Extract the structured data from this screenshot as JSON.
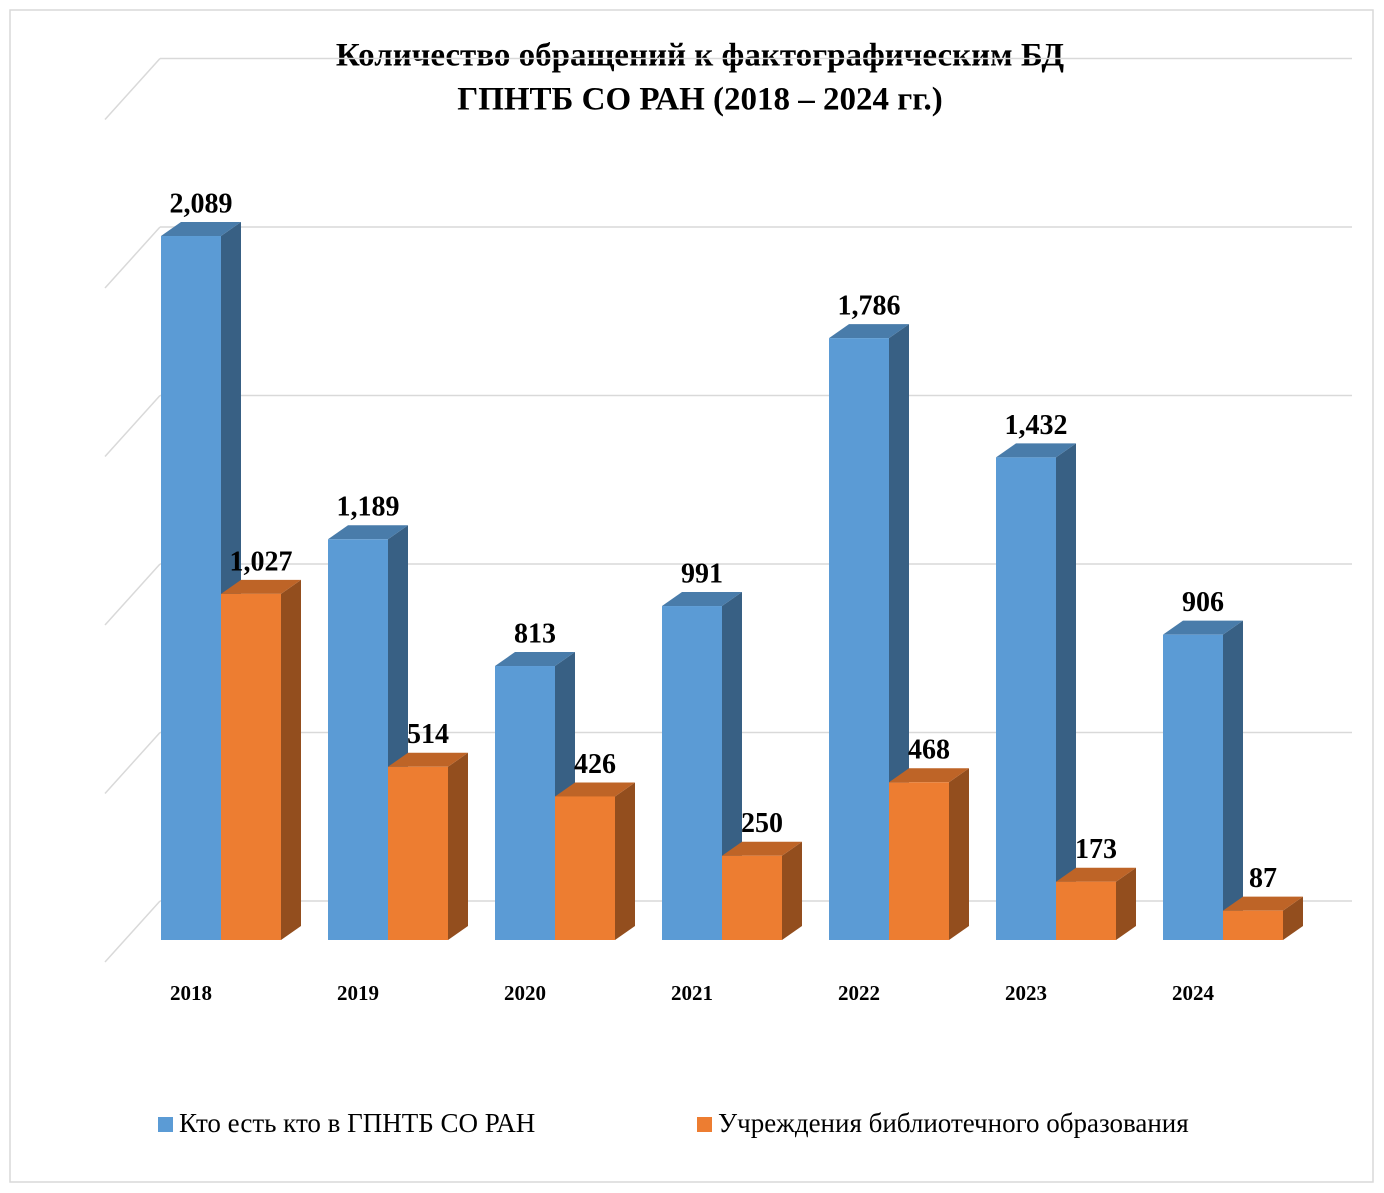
{
  "chart_data": {
    "type": "bar3d",
    "title": [
      "Количество обращений к фактографическим БД",
      "ГПНТБ СО РАН (2018 – 2024 гг.)"
    ],
    "categories": [
      "2018",
      "2019",
      "2020",
      "2021",
      "2022",
      "2023",
      "2024"
    ],
    "series": [
      {
        "name": "Кто есть кто в ГПНТБ СО РАН",
        "color": "#5b9bd5",
        "values": [
          2089,
          1189,
          813,
          991,
          1786,
          1432,
          906
        ],
        "value_labels": [
          "2,089",
          "1,189",
          "813",
          "991",
          "1,786",
          "1,432",
          "906"
        ]
      },
      {
        "name": "Учреждения библиотечного образования",
        "color": "#ed7d31",
        "values": [
          1027,
          514,
          426,
          250,
          468,
          173,
          87
        ],
        "value_labels": [
          "1,027",
          "514",
          "426",
          "250",
          "468",
          "173",
          "87"
        ]
      }
    ],
    "ylim": [
      0,
      2500
    ],
    "yticks": [
      0,
      500,
      1000,
      1500,
      2000,
      2500
    ],
    "grid": true,
    "legend": "bottom"
  }
}
